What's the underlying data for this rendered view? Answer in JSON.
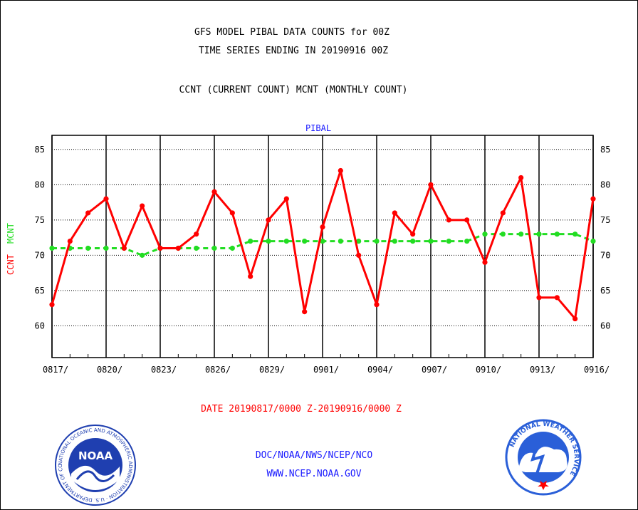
{
  "header": {
    "title_line1": "GFS MODEL PIBAL DATA COUNTS for 00Z",
    "title_line2": "TIME SERIES ENDING IN 20190916 00Z",
    "subtitle": "CCNT (CURRENT COUNT) MCNT (MONTHLY COUNT)"
  },
  "chart_data": {
    "type": "line",
    "title": "PIBAL",
    "ylabel_ccnt": "CCNT",
    "ylabel_mcnt": "MCNT",
    "xlabel": "DATE 20190817/0000 Z-20190916/0000 Z",
    "x": [
      "0817",
      "0818",
      "0819",
      "0820",
      "0821",
      "0822",
      "0823",
      "0824",
      "0825",
      "0826",
      "0827",
      "0828",
      "0829",
      "0830",
      "0831",
      "0901",
      "0902",
      "0903",
      "0904",
      "0905",
      "0906",
      "0907",
      "0908",
      "0909",
      "0910",
      "0911",
      "0912",
      "0913",
      "0914",
      "0915",
      "0916"
    ],
    "x_tick_labels": [
      "0817/",
      "0820/",
      "0823/",
      "0826/",
      "0829/",
      "0901/",
      "0904/",
      "0907/",
      "0910/",
      "0913/",
      "0916/"
    ],
    "y_tick_labels": [
      "60",
      "65",
      "70",
      "75",
      "80",
      "85"
    ],
    "ylim": [
      55.5,
      87
    ],
    "grid": true,
    "series": [
      {
        "name": "CCNT",
        "color": "#ff0000",
        "style": "solid",
        "values": [
          63,
          72,
          76,
          78,
          71,
          77,
          71,
          71,
          73,
          79,
          76,
          67,
          75,
          78,
          62,
          74,
          82,
          70,
          63,
          76,
          73,
          80,
          75,
          75,
          69,
          76,
          81,
          64,
          64,
          61,
          78
        ]
      },
      {
        "name": "MCNT",
        "color": "#22dd22",
        "style": "dashed",
        "values": [
          71,
          71,
          71,
          71,
          71,
          70,
          71,
          71,
          71,
          71,
          71,
          72,
          72,
          72,
          72,
          72,
          72,
          72,
          72,
          72,
          72,
          72,
          72,
          72,
          73,
          73,
          73,
          73,
          73,
          73,
          72
        ]
      }
    ]
  },
  "footer": {
    "agency_line": "DOC/NOAA/NWS/NCEP/NCO",
    "website": "WWW.NCEP.NOAA.GOV",
    "noaa_logo_text": "NOAA",
    "noaa_ring_text": "NATIONAL OCEANIC AND ATMOSPHERIC ADMINISTRATION · U.S. DEPARTMENT OF COMMERCE",
    "nws_ring_text": "NATIONAL WEATHER SERVICE"
  },
  "colors": {
    "ccnt": "#ff0000",
    "mcnt": "#22dd22",
    "title_blue": "#1a1aff",
    "noaa_blue": "#1f3fb0",
    "nws_blue": "#2a5fd8"
  }
}
